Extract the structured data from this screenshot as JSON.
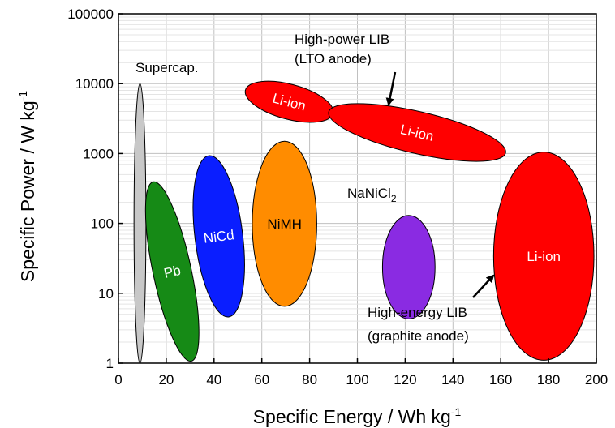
{
  "chart_data": {
    "type": "scatter",
    "xlabel": "Specific Energy / Wh kg",
    "xlabel_sup": "-1",
    "ylabel": "Specific Power / W kg",
    "ylabel_sup": "-1",
    "xlim": [
      0,
      200
    ],
    "ylim": [
      1,
      100000
    ],
    "yscale": "log",
    "grid": true,
    "xticks": [
      0,
      20,
      40,
      60,
      80,
      100,
      120,
      140,
      160,
      180,
      200
    ],
    "yticks": [
      1,
      10,
      100,
      1000,
      10000,
      100000
    ],
    "regions": [
      {
        "name": "Supercap.",
        "x_center": 9,
        "y_min": 1,
        "y_max": 10000,
        "x_width": 5,
        "color": "#c8c8c8",
        "tilt_deg": 0,
        "label": "",
        "label_color": "#ffffff"
      },
      {
        "name": "Pb",
        "x_center": 22.5,
        "y_min": 1,
        "y_max": 420,
        "x_width": 16,
        "color": "#168a16",
        "tilt_deg": -12,
        "label": "Pb",
        "label_color": "#ffffff"
      },
      {
        "name": "NiCd",
        "x_center": 42,
        "y_min": 4.5,
        "y_max": 950,
        "x_width": 20,
        "color": "#0a1eff",
        "tilt_deg": -7,
        "label": "NiCd",
        "label_color": "#ffffff"
      },
      {
        "name": "NiMH",
        "x_center": 69.5,
        "y_min": 6.5,
        "y_max": 1500,
        "x_width": 27,
        "color": "#ff8c00",
        "tilt_deg": 0,
        "label": "NiMH",
        "label_color": "#000000"
      },
      {
        "name": "NaNiCl2",
        "x_center": 121.5,
        "y_min": 4.3,
        "y_max": 130,
        "x_width": 22,
        "color": "#8a2be2",
        "tilt_deg": 0,
        "label": "",
        "label_color": "#ffffff"
      },
      {
        "name": "Li-ion (high-energy)",
        "x_center": 178,
        "y_min": 1.1,
        "y_max": 1050,
        "x_width": 42,
        "color": "#ff0000",
        "tilt_deg": 0,
        "label": "Li-ion",
        "label_color": "#ffffff"
      },
      {
        "name": "Li-ion (high-power, upper)",
        "x_center": 71.5,
        "y_center": 5500,
        "x_width": 38,
        "y_span_decades": 0.5,
        "color": "#ff0000",
        "tilt_deg": 15,
        "label": "Li-ion",
        "label_color": "#ffffff"
      },
      {
        "name": "Li-ion (high-power, lower)",
        "x_center": 125,
        "y_center": 2000,
        "x_width": 76,
        "y_span_decades": 0.6,
        "color": "#ff0000",
        "tilt_deg": 13,
        "label": "Li-ion",
        "label_color": "#ffffff"
      }
    ],
    "annotations": {
      "supercap": "Supercap.",
      "nanicl_main": "NaNiCl",
      "nanicl_sub": "2",
      "high_power_line1": "High-power LIB",
      "high_power_line2": "(LTO anode)",
      "high_energy_line1": "High-energy LIB",
      "high_energy_line2": "(graphite anode)"
    }
  }
}
